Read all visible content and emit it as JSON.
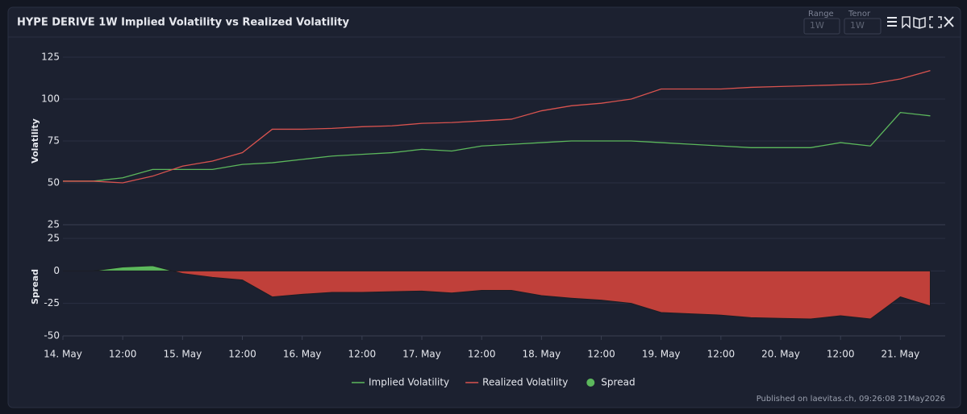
{
  "header": {
    "title": "HYPE DERIVE 1W Implied Volatility vs Realized Volatility",
    "controls": [
      {
        "label": "Range",
        "value": "1W"
      },
      {
        "label": "Tenor",
        "value": "1W"
      }
    ]
  },
  "chart_data": [
    {
      "type": "line",
      "y_label": "Volatility",
      "x": [
        0,
        6,
        12,
        18,
        24,
        30,
        36,
        42,
        48,
        54,
        60,
        66,
        72,
        78,
        84,
        90,
        96,
        102,
        108,
        114,
        120,
        126,
        132,
        138,
        144,
        150,
        156,
        162,
        168,
        174
      ],
      "xlim": [
        0,
        177
      ],
      "ylim": [
        25,
        125
      ],
      "yticks": [
        25,
        50,
        75,
        100,
        125
      ],
      "grid": true,
      "series": [
        {
          "name": "Implied Volatility",
          "color": "#5cb85c",
          "values": [
            51,
            51,
            53,
            58,
            58,
            58,
            61,
            62,
            64,
            66,
            67,
            68,
            70,
            69,
            72,
            73,
            74,
            75,
            75,
            75,
            74,
            73,
            72,
            71,
            71,
            71,
            74,
            72,
            92,
            90
          ]
        },
        {
          "name": "Realized Volatility",
          "color": "#d9534f",
          "values": [
            51,
            51,
            50,
            54,
            60,
            63,
            68,
            82,
            82,
            82.5,
            83.5,
            84,
            85.5,
            86,
            87,
            88,
            93,
            96,
            97.5,
            100,
            106,
            106,
            106,
            107,
            107.5,
            108,
            108.5,
            109,
            112,
            117
          ]
        }
      ]
    },
    {
      "type": "area",
      "y_label": "Spread",
      "x": [
        0,
        6,
        12,
        18,
        24,
        30,
        36,
        42,
        48,
        54,
        60,
        66,
        72,
        78,
        84,
        90,
        96,
        102,
        108,
        114,
        120,
        126,
        132,
        138,
        144,
        150,
        156,
        162,
        168,
        174
      ],
      "xlim": [
        0,
        177
      ],
      "xticks": [
        {
          "value": 0,
          "label": "14. May"
        },
        {
          "value": 12,
          "label": "12:00"
        },
        {
          "value": 24,
          "label": "15. May"
        },
        {
          "value": 36,
          "label": "12:00"
        },
        {
          "value": 48,
          "label": "16. May"
        },
        {
          "value": 60,
          "label": "12:00"
        },
        {
          "value": 72,
          "label": "17. May"
        },
        {
          "value": 84,
          "label": "12:00"
        },
        {
          "value": 96,
          "label": "18. May"
        },
        {
          "value": 108,
          "label": "12:00"
        },
        {
          "value": 120,
          "label": "19. May"
        },
        {
          "value": 132,
          "label": "12:00"
        },
        {
          "value": 144,
          "label": "20. May"
        },
        {
          "value": 156,
          "label": "12:00"
        },
        {
          "value": 168,
          "label": "21. May"
        }
      ],
      "ylim": [
        -50,
        25
      ],
      "yticks": [
        -50,
        -25,
        0,
        25
      ],
      "grid": true,
      "series": [
        {
          "name": "Spread",
          "color": "#5cb85c",
          "negative_color": "#c0403a",
          "values": [
            0,
            0,
            3,
            4,
            -2,
            -5,
            -7,
            -20,
            -18,
            -16.5,
            -16.5,
            -16,
            -15.5,
            -17,
            -15,
            -15,
            -19,
            -21,
            -22.5,
            -25,
            -32,
            -33,
            -34,
            -36,
            -36.5,
            -37,
            -34.5,
            -37,
            -20,
            -27
          ]
        }
      ]
    }
  ],
  "footer": "Published on laevitas.ch, 09:26:08 21May2026"
}
